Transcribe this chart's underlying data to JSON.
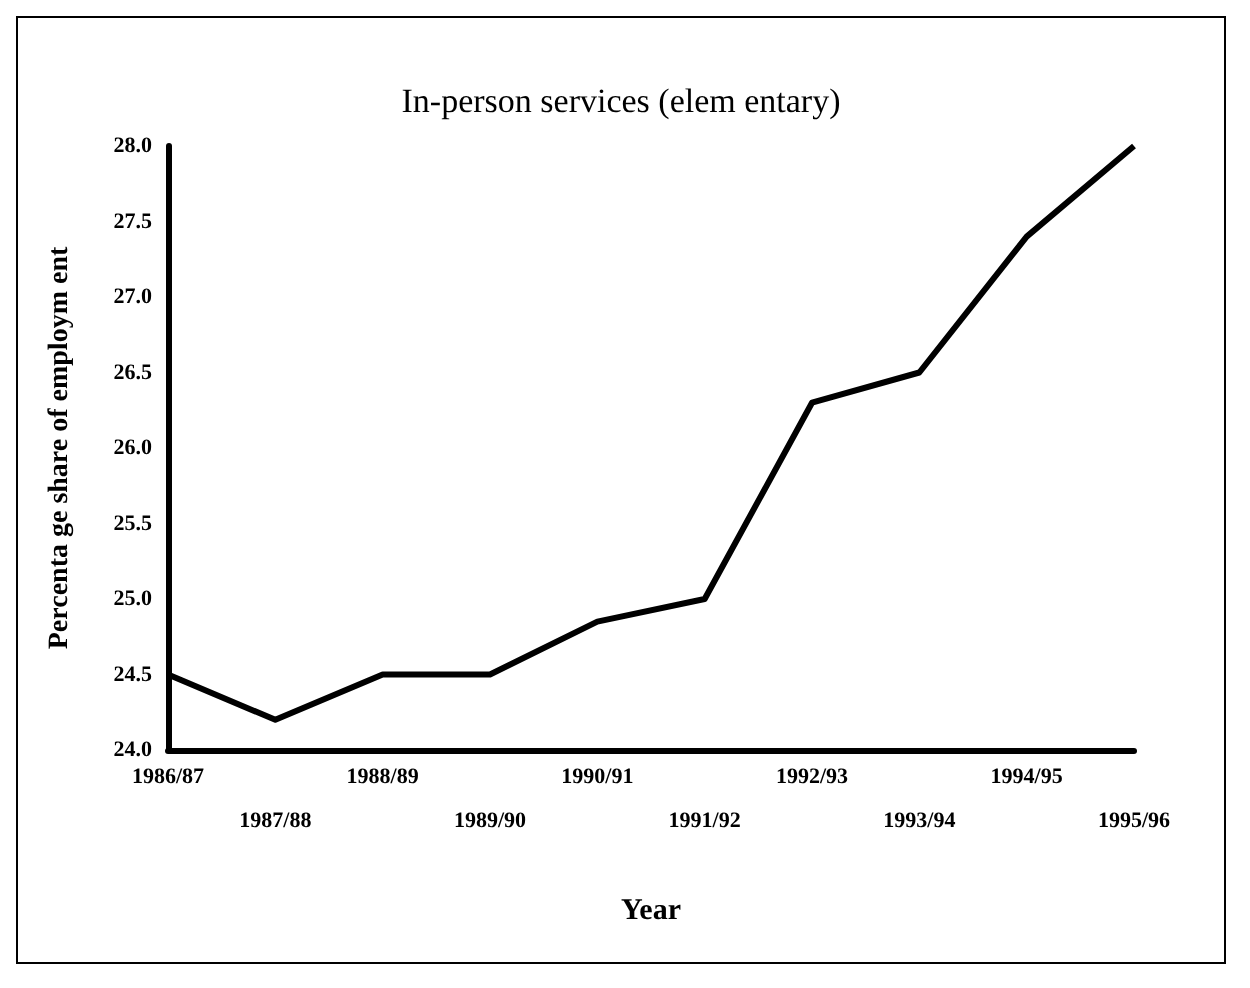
{
  "chart_data": {
    "type": "line",
    "title": "In-person services (elem entary)",
    "xlabel": "Year",
    "ylabel": "Percenta ge share of employm ent",
    "categories": [
      "1986/87",
      "1987/88",
      "1988/89",
      "1989/90",
      "1990/91",
      "1991/92",
      "1992/93",
      "1993/94",
      "1994/95",
      "1995/96"
    ],
    "series": [
      {
        "color": "#000000",
        "values": [
          24.5,
          24.2,
          24.5,
          24.5,
          24.85,
          25.0,
          26.3,
          26.5,
          27.4,
          28.0
        ]
      }
    ],
    "ylim": [
      24.0,
      28.0
    ],
    "yticks": [
      {
        "value": 24,
        "label": "24.0"
      },
      24.5,
      {
        "value": 25,
        "label": "25.0"
      },
      25.5,
      {
        "value": 26,
        "label": "26.0"
      },
      26.5,
      {
        "value": 27,
        "label": "27.0"
      },
      27.5,
      {
        "value": 28,
        "label": "28.0"
      }
    ],
    "grid": false,
    "marker": "none",
    "line_style": "solid"
  }
}
